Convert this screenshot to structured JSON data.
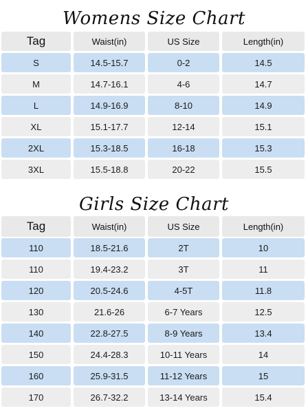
{
  "womens": {
    "title": "Womens Size Chart",
    "headers": [
      "Tag",
      "Waist(in)",
      "US Size",
      "Length(in)"
    ],
    "rows": [
      [
        "S",
        "14.5-15.7",
        "0-2",
        "14.5"
      ],
      [
        "M",
        "14.7-16.1",
        "4-6",
        "14.7"
      ],
      [
        "L",
        "14.9-16.9",
        "8-10",
        "14.9"
      ],
      [
        "XL",
        "15.1-17.7",
        "12-14",
        "15.1"
      ],
      [
        "2XL",
        "15.3-18.5",
        "16-18",
        "15.3"
      ],
      [
        "3XL",
        "15.5-18.8",
        "20-22",
        "15.5"
      ]
    ]
  },
  "girls": {
    "title": "Girls Size Chart",
    "headers": [
      "Tag",
      "Waist(in)",
      "US Size",
      "Length(in)"
    ],
    "rows": [
      [
        "110",
        "18.5-21.6",
        "2T",
        "10"
      ],
      [
        "110",
        "19.4-23.2",
        "3T",
        "11"
      ],
      [
        "120",
        "20.5-24.6",
        "4-5T",
        "11.8"
      ],
      [
        "130",
        "21.6-26",
        "6-7 Years",
        "12.5"
      ],
      [
        "140",
        "22.8-27.5",
        "8-9 Years",
        "13.4"
      ],
      [
        "150",
        "24.4-28.3",
        "10-11 Years",
        "14"
      ],
      [
        "160",
        "25.9-31.5",
        "11-12 Years",
        "15"
      ],
      [
        "170",
        "26.7-32.2",
        "13-14 Years",
        "15.4"
      ]
    ]
  },
  "colors": {
    "header_bg": "#e9e9e9",
    "blue_row_bg": "#c9def3",
    "gray_row_bg": "#ededed"
  }
}
